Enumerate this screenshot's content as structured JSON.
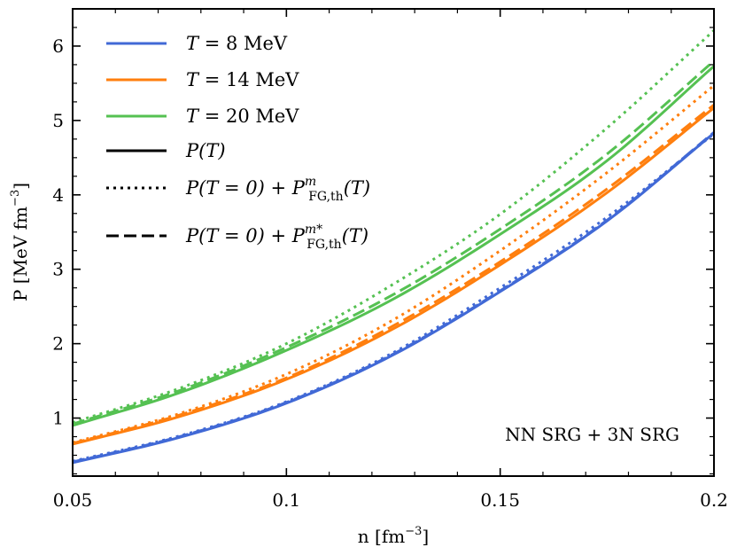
{
  "chart_data": {
    "type": "line",
    "xlabel": "n [fm",
    "xlabel_sup": "−3",
    "xlabel_end": "]",
    "ylabel": "P [MeV fm",
    "ylabel_sup": "−3",
    "ylabel_end": "]",
    "xlim": [
      0.05,
      0.2
    ],
    "ylim": [
      0.22,
      6.5
    ],
    "xticks": [
      0.05,
      0.1,
      0.15,
      0.2
    ],
    "xtick_labels": [
      "0.05",
      "0.1",
      "0.15",
      "0.2"
    ],
    "yticks": [
      1,
      2,
      3,
      4,
      5,
      6
    ],
    "ytick_labels": [
      "1",
      "2",
      "3",
      "4",
      "5",
      "6"
    ],
    "grid": false,
    "legend_position": "top-left",
    "annotation": "NN SRG + 3N SRG",
    "x": [
      0.05,
      0.075,
      0.1,
      0.125,
      0.15,
      0.175,
      0.2
    ],
    "series": [
      {
        "name": "T = 8 MeV",
        "temperature": "8",
        "style": "solid",
        "color": "#4169d6",
        "values": [
          0.4,
          0.74,
          1.2,
          1.85,
          2.7,
          3.65,
          4.83
        ]
      },
      {
        "name": "T = 8 MeV",
        "temperature": "8",
        "style": "dotted",
        "color": "#4169d6",
        "values": [
          0.42,
          0.76,
          1.22,
          1.88,
          2.75,
          3.7,
          4.82
        ]
      },
      {
        "name": "T = 8 MeV",
        "temperature": "8",
        "style": "dashed",
        "color": "#4169d6",
        "values": [
          0.41,
          0.75,
          1.21,
          1.86,
          2.71,
          3.66,
          4.84
        ]
      },
      {
        "name": "T = 14 MeV",
        "temperature": "14",
        "style": "solid",
        "color": "#ff7f0e",
        "values": [
          0.65,
          1.02,
          1.52,
          2.2,
          3.06,
          4.03,
          5.17
        ]
      },
      {
        "name": "T = 14 MeV",
        "temperature": "14",
        "style": "dotted",
        "color": "#ff7f0e",
        "values": [
          0.67,
          1.06,
          1.59,
          2.32,
          3.25,
          4.3,
          5.47
        ]
      },
      {
        "name": "T = 14 MeV",
        "temperature": "14",
        "style": "dashed",
        "color": "#ff7f0e",
        "values": [
          0.66,
          1.04,
          1.54,
          2.24,
          3.1,
          4.08,
          5.21
        ]
      },
      {
        "name": "T = 20 MeV",
        "temperature": "20",
        "style": "solid",
        "color": "#55c152",
        "values": [
          0.9,
          1.34,
          1.91,
          2.6,
          3.47,
          4.46,
          5.73
        ]
      },
      {
        "name": "T = 20 MeV",
        "temperature": "20",
        "style": "dotted",
        "color": "#55c152",
        "values": [
          0.94,
          1.4,
          2.0,
          2.8,
          3.74,
          4.9,
          6.21
        ]
      },
      {
        "name": "T = 20 MeV",
        "temperature": "20",
        "style": "dashed",
        "color": "#55c152",
        "values": [
          0.92,
          1.37,
          1.95,
          2.66,
          3.54,
          4.55,
          5.8
        ]
      }
    ],
    "legend": {
      "temperature_entries": [
        {
          "label": "T = 8 MeV",
          "var": "T",
          "value": "8",
          "unit": "MeV",
          "color": "#4169d6"
        },
        {
          "label": "T = 14 MeV",
          "var": "T",
          "value": "14",
          "unit": "MeV",
          "color": "#ff7f0e"
        },
        {
          "label": "T = 20 MeV",
          "var": "T",
          "value": "20",
          "unit": "MeV",
          "color": "#55c152"
        }
      ],
      "style_entries": [
        {
          "style": "solid",
          "text": "P(T)"
        },
        {
          "style": "dotted",
          "text": "P(T = 0) + P",
          "sup": "m",
          "sub": "FG,th",
          "tail": "(T)"
        },
        {
          "style": "dashed",
          "text": "P(T = 0) + P",
          "sup": "m*",
          "sub": "FG,th",
          "tail": "(T)"
        }
      ]
    }
  }
}
